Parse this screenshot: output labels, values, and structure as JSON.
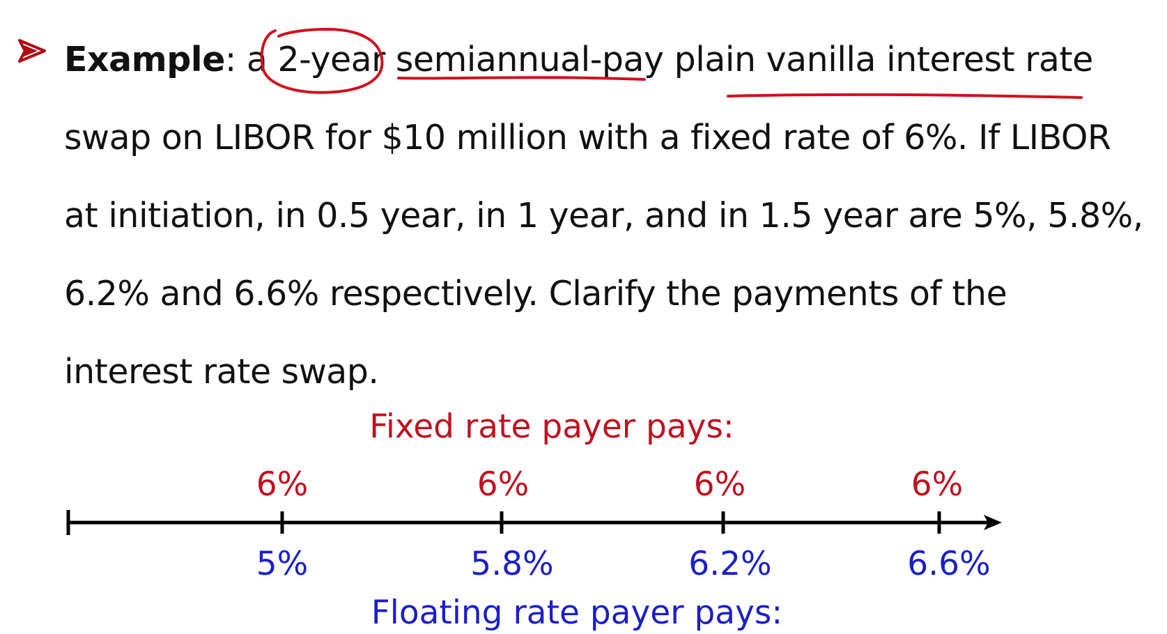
{
  "example": {
    "label": "Example",
    "after_label": ": a ",
    "line1_rest_a": "2-year",
    "line1_rest_b": " semiannual-pay plain vanilla interest rate",
    "line2": "swap on LIBOR for $10 million with a fixed rate of 6%. If LIBOR",
    "line3": "at initiation, in 0.5 year, in 1 year, and in 1.5 year are 5%, 5.8%,",
    "line4": "6.2% and  6.6% respectively. Clarify the payments of the",
    "line5": "interest rate swap."
  },
  "diagram": {
    "fixed_title": "Fixed rate payer pays:",
    "floating_title": "Floating rate payer pays:",
    "fixed_rates": [
      "6%",
      "6%",
      "6%",
      "6%"
    ],
    "floating_rates": [
      "5%",
      "5.8%",
      "6.2%",
      "6.6%"
    ]
  },
  "colors": {
    "fixed": "#c0101e",
    "floating": "#1a1fc8",
    "annotation": "#d0101c",
    "bullet": "#b00a12"
  },
  "icons": {
    "bullet": "arrowhead-bullet-icon"
  }
}
